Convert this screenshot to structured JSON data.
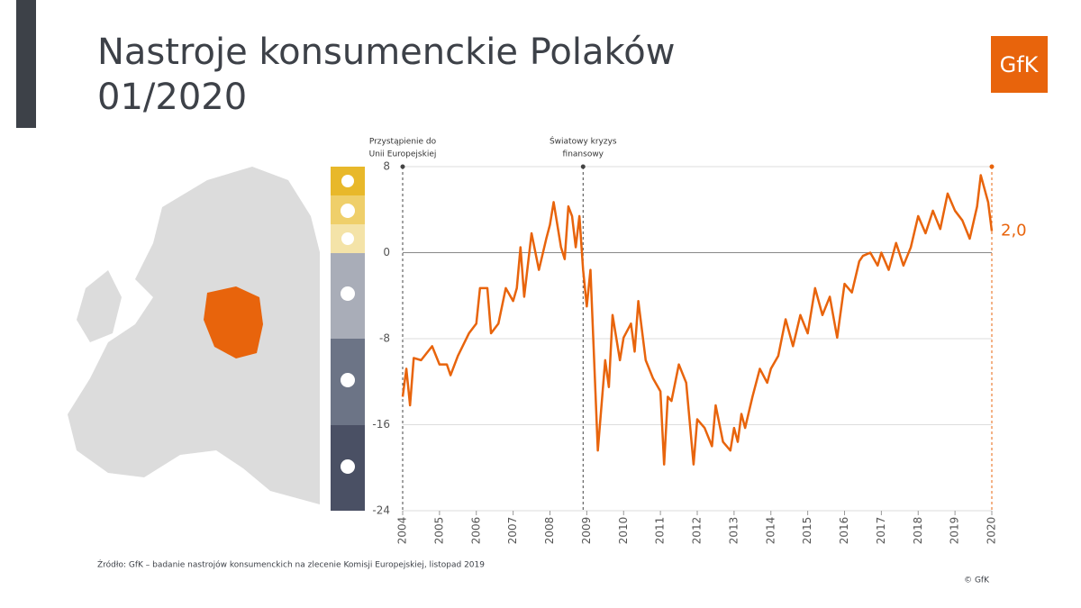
{
  "title_lines": [
    "Nastroje konsumenckie Polaków",
    "01/2020"
  ],
  "logo": "GfK",
  "source": "Źródło: GfK – badanie nastrojów konsumenckich na zlecenie Komisji Europejskiej, listopad 2019",
  "copyright": "© GfK",
  "chart_data": {
    "type": "line",
    "xlim": [
      2004,
      2020
    ],
    "xticks": [
      2004,
      2005,
      2006,
      2007,
      2008,
      2009,
      2010,
      2011,
      2012,
      2013,
      2014,
      2015,
      2016,
      2017,
      2018,
      2019,
      2020
    ],
    "ylim": [
      -24,
      8
    ],
    "yticks": [
      8,
      0,
      -8,
      -16,
      -24
    ],
    "grid": true,
    "annotations": [
      {
        "x": 2004,
        "lines": [
          "Przystąpienie do",
          "Unii Europejskiej"
        ]
      },
      {
        "x": 2008.9,
        "lines": [
          "Światowy kryzys",
          "finansowy"
        ]
      }
    ],
    "series": [
      {
        "name": "Nastroje konsumenckie",
        "color": "#e8640c",
        "x": [
          2004.0,
          2004.1,
          2004.2,
          2004.3,
          2004.5,
          2004.8,
          2005.0,
          2005.2,
          2005.3,
          2005.5,
          2005.8,
          2006.0,
          2006.1,
          2006.3,
          2006.4,
          2006.6,
          2006.8,
          2007.0,
          2007.1,
          2007.2,
          2007.3,
          2007.5,
          2007.7,
          2007.9,
          2008.0,
          2008.1,
          2008.2,
          2008.3,
          2008.4,
          2008.5,
          2008.6,
          2008.7,
          2008.8,
          2008.9,
          2009.0,
          2009.1,
          2009.3,
          2009.5,
          2009.6,
          2009.7,
          2009.9,
          2010.0,
          2010.2,
          2010.3,
          2010.4,
          2010.6,
          2010.8,
          2011.0,
          2011.1,
          2011.2,
          2011.3,
          2011.5,
          2011.7,
          2011.9,
          2012.0,
          2012.2,
          2012.4,
          2012.5,
          2012.7,
          2012.9,
          2013.0,
          2013.1,
          2013.2,
          2013.3,
          2013.5,
          2013.7,
          2013.9,
          2014.0,
          2014.2,
          2014.4,
          2014.6,
          2014.8,
          2015.0,
          2015.2,
          2015.4,
          2015.6,
          2015.8,
          2016.0,
          2016.2,
          2016.4,
          2016.5,
          2016.7,
          2016.9,
          2017.0,
          2017.2,
          2017.4,
          2017.6,
          2017.8,
          2018.0,
          2018.2,
          2018.4,
          2018.6,
          2018.8,
          2019.0,
          2019.2,
          2019.4,
          2019.6,
          2019.7,
          2019.9,
          2020.0
        ],
        "values": [
          -13.4,
          -10.8,
          -14.2,
          -9.8,
          -10,
          -8.7,
          -10.4,
          -10.4,
          -11.4,
          -9.6,
          -7.5,
          -6.6,
          -3.3,
          -3.3,
          -7.5,
          -6.6,
          -3.3,
          -4.5,
          -3.3,
          0.5,
          -4.1,
          1.8,
          -1.6,
          1.3,
          2.6,
          4.7,
          2.6,
          0.5,
          -0.6,
          4.3,
          3.4,
          0.5,
          3.4,
          -1.6,
          -5,
          -1.6,
          -18.4,
          -10,
          -12.5,
          -5.8,
          -10,
          -7.9,
          -6.6,
          -9.2,
          -4.5,
          -10,
          -11.7,
          -12.9,
          -19.7,
          -13.4,
          -13.8,
          -10.4,
          -12.1,
          -19.7,
          -15.5,
          -16.3,
          -18,
          -14.2,
          -17.6,
          -18.4,
          -16.3,
          -17.6,
          -15,
          -16.3,
          -13.4,
          -10.8,
          -12.1,
          -10.8,
          -9.6,
          -6.2,
          -8.7,
          -5.8,
          -7.5,
          -3.3,
          -5.8,
          -4.1,
          -7.9,
          -2.9,
          -3.7,
          -0.8,
          -0.3,
          0,
          -1.2,
          0,
          -1.6,
          0.9,
          -1.2,
          0.5,
          3.4,
          1.8,
          3.9,
          2.2,
          5.5,
          3.9,
          3,
          1.3,
          4.3,
          7.2,
          4.7,
          2.0
        ],
        "last_value_label": "2,0"
      }
    ]
  }
}
